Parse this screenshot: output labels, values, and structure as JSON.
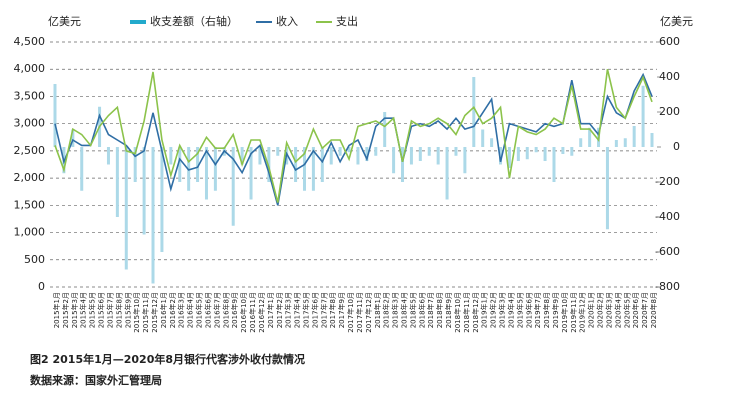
{
  "chart_data": {
    "type": "line_bar_dual",
    "caption": "图2 2015年1月—2020年8月银行代客涉外收付款情况",
    "source": "数据来源：国家外汇管理局",
    "y_unit": "亿美元",
    "y2_unit": "亿美元",
    "categories": [
      "2015年1月",
      "2015年2月",
      "2015年3月",
      "2015年4月",
      "2015年5月",
      "2015年6月",
      "2015年7月",
      "2015年8月",
      "2015年9月",
      "2015年10月",
      "2015年11月",
      "2015年12月",
      "2016年1月",
      "2016年2月",
      "2016年3月",
      "2016年4月",
      "2016年5月",
      "2016年6月",
      "2016年7月",
      "2016年8月",
      "2016年9月",
      "2016年10月",
      "2016年11月",
      "2016年12月",
      "2017年1月",
      "2017年2月",
      "2017年3月",
      "2017年4月",
      "2017年5月",
      "2017年6月",
      "2017年7月",
      "2017年8月",
      "2017年9月",
      "2017年10月",
      "2017年11月",
      "2017年12月",
      "2018年1月",
      "2018年2月",
      "2018年3月",
      "2018年4月",
      "2018年5月",
      "2018年6月",
      "2018年7月",
      "2018年8月",
      "2018年9月",
      "2018年10月",
      "2018年11月",
      "2018年12月",
      "2019年1月",
      "2019年2月",
      "2019年3月",
      "2019年4月",
      "2019年5月",
      "2019年6月",
      "2019年7月",
      "2019年8月",
      "2019年9月",
      "2019年10月",
      "2019年11月",
      "2019年12月",
      "2020年1月",
      "2020年2月",
      "2020年3月",
      "2020年4月",
      "2020年5月",
      "2020年6月",
      "2020年7月",
      "2020年8月"
    ],
    "series": [
      {
        "name": "收支差额（右轴）",
        "kind": "bar",
        "axis": "y2",
        "color": "#acd9e8",
        "values": [
          360,
          -150,
          100,
          -250,
          0,
          230,
          -100,
          -400,
          -700,
          -200,
          -500,
          -780,
          -600,
          -100,
          -200,
          -250,
          -200,
          -300,
          -250,
          -50,
          -450,
          -100,
          -300,
          -100,
          -200,
          -50,
          -100,
          -200,
          -250,
          -250,
          -200,
          -100,
          -50,
          -30,
          -100,
          -80,
          -50,
          200,
          -150,
          -200,
          -100,
          -80,
          -50,
          -100,
          -300,
          -50,
          -150,
          400,
          100,
          50,
          -100,
          -120,
          -80,
          -70,
          -30,
          -80,
          -200,
          -40,
          -50,
          50,
          110,
          110,
          -470,
          40,
          50,
          120,
          350,
          80
        ]
      },
      {
        "name": "收入",
        "kind": "line",
        "color": "#2f6ea5",
        "values": [
          3000,
          2300,
          2700,
          2600,
          2600,
          3150,
          2800,
          2700,
          2600,
          2400,
          2500,
          3200,
          2500,
          1800,
          2350,
          2150,
          2200,
          2500,
          2250,
          2500,
          2350,
          2100,
          2450,
          2600,
          2100,
          1500,
          2450,
          2150,
          2250,
          2500,
          2300,
          2650,
          2300,
          2600,
          2700,
          2350,
          2950,
          3100,
          3100,
          2300,
          2950,
          3000,
          2950,
          3050,
          2900,
          3100,
          2900,
          2950,
          3200,
          3450,
          2300,
          3000,
          2950,
          2900,
          2850,
          3000,
          2950,
          3000,
          3800,
          3000,
          3000,
          2800,
          3500,
          3200,
          3100,
          3600,
          3900,
          3500
        ]
      },
      {
        "name": "支出",
        "kind": "line",
        "color": "#8cc34b",
        "values": [
          2600,
          2150,
          2900,
          2800,
          2600,
          2950,
          3150,
          3300,
          2500,
          2450,
          3050,
          3950,
          2700,
          2050,
          2600,
          2300,
          2450,
          2750,
          2550,
          2550,
          2800,
          2250,
          2700,
          2700,
          2200,
          1550,
          2650,
          2300,
          2450,
          2900,
          2550,
          2700,
          2700,
          2350,
          2950,
          3000,
          3050,
          2950,
          3100,
          2300,
          3050,
          2950,
          3000,
          3100,
          3000,
          2800,
          3150,
          3300,
          3000,
          3100,
          3300,
          2000,
          2950,
          2850,
          2800,
          2900,
          3100,
          3000,
          3700,
          2900,
          2900,
          2700,
          4000,
          3300,
          3100,
          3500,
          3850,
          3400
        ]
      }
    ],
    "ylim": [
      0,
      4500
    ],
    "yticks": [
      0,
      {
        "value": 500,
        "label": "500"
      },
      {
        "value": 1000,
        "label": "1,000"
      },
      {
        "value": 1500,
        "label": "1,500"
      },
      {
        "value": 2000,
        "label": "2,000"
      },
      {
        "value": 2500,
        "label": "2,500"
      },
      {
        "value": 3000,
        "label": "3,000"
      },
      {
        "value": 3500,
        "label": "3,500"
      },
      {
        "value": 4000,
        "label": "4,000"
      },
      {
        "value": 4500,
        "label": "4,500"
      }
    ],
    "y2lim": [
      -800,
      600
    ],
    "y2ticks": [
      -800,
      -600,
      -400,
      -200,
      0,
      200,
      400,
      600
    ],
    "grid": true
  }
}
